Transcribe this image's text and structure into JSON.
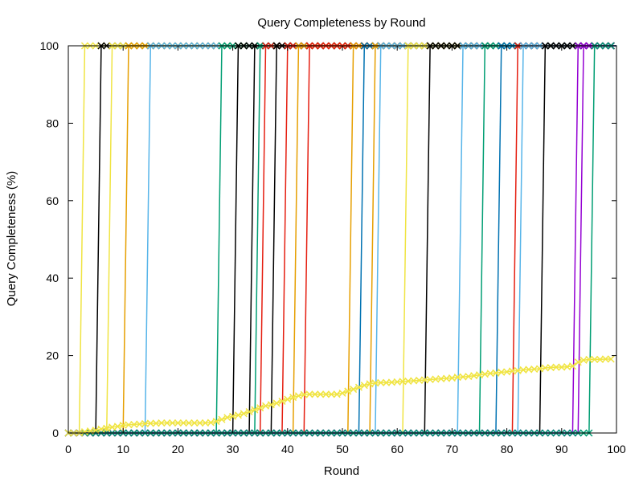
{
  "chart_data": {
    "type": "line",
    "title": "Query Completeness by Round",
    "xlabel": "Round",
    "ylabel": "Query Completeness (%)",
    "xlim": [
      0,
      100
    ],
    "ylim": [
      0,
      100
    ],
    "xticks": [
      "0",
      "10",
      "20",
      "30",
      "40",
      "50",
      "60",
      "70",
      "80",
      "90",
      "100"
    ],
    "yticks": [
      "0",
      "20",
      "40",
      "60",
      "80",
      "100"
    ],
    "grid": false,
    "legend": "none",
    "palette": [
      "#9400d3",
      "#009e73",
      "#56b4e9",
      "#e69f00",
      "#f0e442",
      "#0072b2",
      "#e51e10",
      "#000000"
    ],
    "series": [
      {
        "color": "#f0e442",
        "x": [
          2,
          3
        ],
        "y": [
          0,
          100
        ]
      },
      {
        "color": "#000000",
        "x": [
          5,
          6
        ],
        "y": [
          0,
          100
        ]
      },
      {
        "color": "#f0e442",
        "x": [
          7,
          8
        ],
        "y": [
          0,
          100
        ]
      },
      {
        "color": "#e69f00",
        "x": [
          10,
          11
        ],
        "y": [
          0,
          100
        ]
      },
      {
        "color": "#56b4e9",
        "x": [
          14,
          15
        ],
        "y": [
          0,
          100
        ]
      },
      {
        "color": "#009e73",
        "x": [
          27,
          28
        ],
        "y": [
          0,
          100
        ]
      },
      {
        "color": "#000000",
        "x": [
          30,
          31
        ],
        "y": [
          0,
          100
        ]
      },
      {
        "color": "#000000",
        "x": [
          33,
          34
        ],
        "y": [
          0,
          100
        ]
      },
      {
        "color": "#009e73",
        "x": [
          34,
          35
        ],
        "y": [
          0,
          100
        ]
      },
      {
        "color": "#e51e10",
        "x": [
          35,
          36
        ],
        "y": [
          0,
          100
        ]
      },
      {
        "color": "#000000",
        "x": [
          37,
          38
        ],
        "y": [
          0,
          100
        ]
      },
      {
        "color": "#e51e10",
        "x": [
          39,
          40
        ],
        "y": [
          0,
          100
        ]
      },
      {
        "color": "#e69f00",
        "x": [
          41,
          42
        ],
        "y": [
          0,
          100
        ]
      },
      {
        "color": "#e51e10",
        "x": [
          43,
          44
        ],
        "y": [
          0,
          100
        ]
      },
      {
        "color": "#e69f00",
        "x": [
          51,
          52
        ],
        "y": [
          0,
          100
        ]
      },
      {
        "color": "#0072b2",
        "x": [
          53,
          54
        ],
        "y": [
          0,
          100
        ]
      },
      {
        "color": "#e69f00",
        "x": [
          55,
          56
        ],
        "y": [
          0,
          100
        ]
      },
      {
        "color": "#56b4e9",
        "x": [
          56,
          57
        ],
        "y": [
          0,
          100
        ]
      },
      {
        "color": "#f0e442",
        "x": [
          61,
          62
        ],
        "y": [
          0,
          100
        ]
      },
      {
        "color": "#000000",
        "x": [
          65,
          66
        ],
        "y": [
          0,
          100
        ]
      },
      {
        "color": "#56b4e9",
        "x": [
          71,
          72
        ],
        "y": [
          0,
          100
        ]
      },
      {
        "color": "#009e73",
        "x": [
          75,
          76
        ],
        "y": [
          0,
          100
        ]
      },
      {
        "color": "#0072b2",
        "x": [
          78,
          79
        ],
        "y": [
          0,
          100
        ]
      },
      {
        "color": "#e51e10",
        "x": [
          81,
          82
        ],
        "y": [
          0,
          100
        ]
      },
      {
        "color": "#56b4e9",
        "x": [
          82,
          83
        ],
        "y": [
          0,
          100
        ]
      },
      {
        "color": "#000000",
        "x": [
          86,
          87
        ],
        "y": [
          0,
          100
        ]
      },
      {
        "color": "#9400d3",
        "x": [
          92,
          93
        ],
        "y": [
          0,
          100
        ]
      },
      {
        "color": "#9400d3",
        "x": [
          93,
          94
        ],
        "y": [
          0,
          100
        ]
      },
      {
        "color": "#009e73",
        "x": [
          95,
          96
        ],
        "y": [
          0,
          100
        ]
      },
      {
        "color": "#f0e442",
        "x": [
          0,
          1,
          2,
          3,
          4,
          5,
          6,
          7,
          8,
          9,
          10,
          11,
          12,
          13,
          14,
          15,
          16,
          17,
          18,
          19,
          20,
          21,
          22,
          23,
          24,
          25,
          26,
          27,
          28,
          29,
          30,
          31,
          32,
          33,
          34,
          35,
          36,
          37,
          38,
          39,
          40,
          41,
          42,
          43,
          44,
          45,
          46,
          47,
          48,
          49,
          50,
          51,
          52,
          53,
          54,
          55,
          56,
          57,
          58,
          59,
          60,
          61,
          62,
          63,
          64,
          65,
          66,
          67,
          68,
          69,
          70,
          71,
          72,
          73,
          74,
          75,
          76,
          77,
          78,
          79,
          80,
          81,
          82,
          83,
          84,
          85,
          86,
          87,
          88,
          89,
          90,
          91,
          92,
          93,
          94,
          95,
          96,
          97,
          98,
          99
        ],
        "y": [
          0,
          0,
          0,
          0.3,
          0.5,
          0.7,
          1,
          1.2,
          1.5,
          1.7,
          2,
          2.1,
          2.2,
          2.3,
          2.4,
          2.5,
          2.5,
          2.6,
          2.6,
          2.6,
          2.6,
          2.6,
          2.6,
          2.6,
          2.6,
          2.6,
          2.7,
          3,
          3.5,
          4,
          4.3,
          4.6,
          5,
          5.5,
          6,
          6.5,
          7,
          7.3,
          7.7,
          8.2,
          8.7,
          9.2,
          9.6,
          9.9,
          10,
          10,
          10,
          10,
          10,
          10,
          10.3,
          10.8,
          11.3,
          11.8,
          12.3,
          12.7,
          12.9,
          13,
          13,
          13.1,
          13.2,
          13.3,
          13.4,
          13.5,
          13.6,
          13.7,
          13.8,
          13.9,
          14,
          14.1,
          14.2,
          14.4,
          14.5,
          14.6,
          14.8,
          15,
          15.2,
          15.4,
          15.5,
          15.7,
          15.8,
          16,
          16.1,
          16.3,
          16.4,
          16.5,
          16.6,
          16.8,
          16.9,
          17,
          17,
          17.1,
          17.3,
          18.3,
          18.8,
          19,
          19,
          19,
          19.1,
          19.1
        ]
      }
    ]
  }
}
